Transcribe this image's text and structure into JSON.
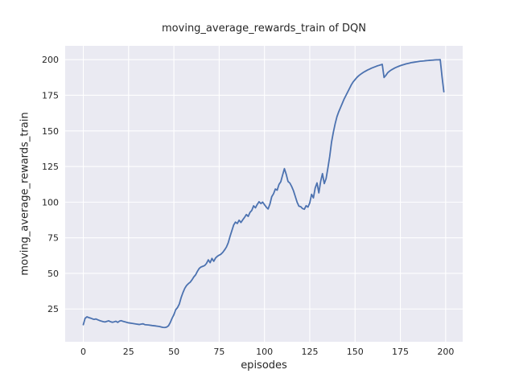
{
  "chart_data": {
    "type": "line",
    "title": "moving_average_rewards_train of DQN",
    "xlabel": "episodes",
    "ylabel": "moving_average_rewards_train",
    "x_ticks": [
      0,
      25,
      50,
      75,
      100,
      125,
      150,
      175,
      200
    ],
    "y_ticks": [
      25,
      50,
      75,
      100,
      125,
      150,
      175,
      200
    ],
    "xlim": [
      -10,
      209.4
    ],
    "ylim": [
      2,
      209.7
    ],
    "grid": true,
    "legend": "none",
    "colors": {
      "line": "#4c72b0",
      "axes_background": "#eaeaf2",
      "grid": "#ffffff",
      "figure_background": "#ffffff",
      "text": "#262626"
    },
    "series": [
      {
        "name": "moving_average_rewards_train",
        "points": [
          [
            0,
            14
          ],
          [
            1,
            18.5
          ],
          [
            2,
            19.5
          ],
          [
            3,
            19
          ],
          [
            4,
            18.6
          ],
          [
            5,
            18.1
          ],
          [
            6,
            17.7
          ],
          [
            7,
            18.0
          ],
          [
            8,
            17.4
          ],
          [
            9,
            16.9
          ],
          [
            10,
            16.5
          ],
          [
            11,
            16.1
          ],
          [
            12,
            15.9
          ],
          [
            13,
            16.3
          ],
          [
            14,
            16.7
          ],
          [
            15,
            16.1
          ],
          [
            16,
            15.7
          ],
          [
            17,
            16.0
          ],
          [
            18,
            16.4
          ],
          [
            19,
            15.6
          ],
          [
            20,
            16.5
          ],
          [
            21,
            16.8
          ],
          [
            22,
            16.3
          ],
          [
            23,
            16.0
          ],
          [
            24,
            15.6
          ],
          [
            25,
            15.3
          ],
          [
            27,
            14.9
          ],
          [
            29,
            14.5
          ],
          [
            31,
            14.1
          ],
          [
            32,
            14.4
          ],
          [
            33,
            14.6
          ],
          [
            34,
            14.0
          ],
          [
            36,
            13.8
          ],
          [
            38,
            13.4
          ],
          [
            40,
            13.1
          ],
          [
            42,
            12.7
          ],
          [
            43,
            12.4
          ],
          [
            44,
            12.1
          ],
          [
            45,
            12.0
          ],
          [
            46,
            12.3
          ],
          [
            47,
            13.2
          ],
          [
            48,
            15.5
          ],
          [
            49,
            18.5
          ],
          [
            50,
            21.0
          ],
          [
            51,
            24.5
          ],
          [
            52,
            26.0
          ],
          [
            53,
            28.5
          ],
          [
            54,
            33.0
          ],
          [
            55,
            36.5
          ],
          [
            56,
            39.5
          ],
          [
            57,
            41.5
          ],
          [
            58,
            42.8
          ],
          [
            59,
            43.8
          ],
          [
            60,
            45.5
          ],
          [
            61,
            47.5
          ],
          [
            62,
            49.0
          ],
          [
            63,
            51.5
          ],
          [
            64,
            53.5
          ],
          [
            65,
            54.5
          ],
          [
            66,
            55.0
          ],
          [
            67,
            55.5
          ],
          [
            68,
            57.0
          ],
          [
            69,
            59.5
          ],
          [
            70,
            57.5
          ],
          [
            71,
            60.5
          ],
          [
            72,
            58.5
          ],
          [
            73,
            60.8
          ],
          [
            74,
            62.0
          ],
          [
            75,
            62.8
          ],
          [
            76,
            63.5
          ],
          [
            77,
            64.8
          ],
          [
            78,
            66.5
          ],
          [
            79,
            68.5
          ],
          [
            80,
            71.5
          ],
          [
            81,
            76.0
          ],
          [
            82,
            80.0
          ],
          [
            83,
            84.0
          ],
          [
            84,
            86.0
          ],
          [
            85,
            85.0
          ],
          [
            86,
            87.3
          ],
          [
            87,
            85.7
          ],
          [
            88,
            87.6
          ],
          [
            89,
            89.3
          ],
          [
            90,
            91.3
          ],
          [
            91,
            90.0
          ],
          [
            92,
            92.8
          ],
          [
            93,
            94.2
          ],
          [
            94,
            97.4
          ],
          [
            95,
            96.0
          ],
          [
            96,
            98.4
          ],
          [
            97,
            100.3
          ],
          [
            98,
            99.0
          ],
          [
            99,
            100.0
          ],
          [
            100,
            98.2
          ],
          [
            101,
            96.5
          ],
          [
            102,
            95.2
          ],
          [
            103,
            98.6
          ],
          [
            104,
            103.8
          ],
          [
            105,
            105.9
          ],
          [
            106,
            109.2
          ],
          [
            107,
            108.4
          ],
          [
            108,
            112.4
          ],
          [
            109,
            114.3
          ],
          [
            110,
            119.0
          ],
          [
            111,
            123.5
          ],
          [
            112,
            119.5
          ],
          [
            113,
            114.5
          ],
          [
            114,
            113.4
          ],
          [
            115,
            111.0
          ],
          [
            116,
            108.0
          ],
          [
            117,
            104.0
          ],
          [
            118,
            100.0
          ],
          [
            119,
            97.2
          ],
          [
            120,
            96.8
          ],
          [
            121,
            95.5
          ],
          [
            122,
            95.0
          ],
          [
            123,
            97.5
          ],
          [
            124,
            96.5
          ],
          [
            125,
            99.5
          ],
          [
            126,
            105.5
          ],
          [
            127,
            103.0
          ],
          [
            128,
            110.0
          ],
          [
            129,
            113.5
          ],
          [
            130,
            106.5
          ],
          [
            131,
            114.5
          ],
          [
            132,
            120.0
          ],
          [
            133,
            113.0
          ],
          [
            134,
            116.5
          ],
          [
            135,
            124.0
          ],
          [
            136,
            132.0
          ],
          [
            137,
            142.0
          ],
          [
            138,
            149.0
          ],
          [
            139,
            155.0
          ],
          [
            140,
            160.0
          ],
          [
            141,
            163.5
          ],
          [
            142,
            166.5
          ],
          [
            143,
            169.5
          ],
          [
            144,
            172.5
          ],
          [
            145,
            175.0
          ],
          [
            146,
            177.5
          ],
          [
            147,
            180.0
          ],
          [
            148,
            182.5
          ],
          [
            149,
            184.5
          ],
          [
            150,
            186.0
          ],
          [
            151,
            187.5
          ],
          [
            152,
            188.7
          ],
          [
            153,
            189.7
          ],
          [
            154,
            190.6
          ],
          [
            155,
            191.4
          ],
          [
            156,
            192.1
          ],
          [
            157,
            192.8
          ],
          [
            158,
            193.4
          ],
          [
            159,
            194.0
          ],
          [
            160,
            194.5
          ],
          [
            161,
            195.0
          ],
          [
            162,
            195.5
          ],
          [
            163,
            195.9
          ],
          [
            164,
            196.3
          ],
          [
            165,
            196.7
          ],
          [
            166,
            187.5
          ],
          [
            167,
            189.0
          ],
          [
            168,
            190.8
          ],
          [
            169,
            191.9
          ],
          [
            170,
            192.8
          ],
          [
            171,
            193.5
          ],
          [
            172,
            194.2
          ],
          [
            173,
            194.8
          ],
          [
            174,
            195.3
          ],
          [
            175,
            195.8
          ],
          [
            176,
            196.2
          ],
          [
            177,
            196.6
          ],
          [
            178,
            197.0
          ],
          [
            179,
            197.3
          ],
          [
            180,
            197.6
          ],
          [
            181,
            197.9
          ],
          [
            182,
            198.1
          ],
          [
            183,
            198.3
          ],
          [
            184,
            198.5
          ],
          [
            185,
            198.7
          ],
          [
            186,
            198.9
          ],
          [
            187,
            199.0
          ],
          [
            188,
            199.1
          ],
          [
            189,
            199.3
          ],
          [
            190,
            199.4
          ],
          [
            191,
            199.5
          ],
          [
            192,
            199.6
          ],
          [
            193,
            199.7
          ],
          [
            194,
            199.8
          ],
          [
            195,
            199.9
          ],
          [
            196,
            199.9
          ],
          [
            197,
            200.0
          ],
          [
            198,
            188.0
          ],
          [
            199,
            177.5
          ]
        ]
      }
    ]
  }
}
